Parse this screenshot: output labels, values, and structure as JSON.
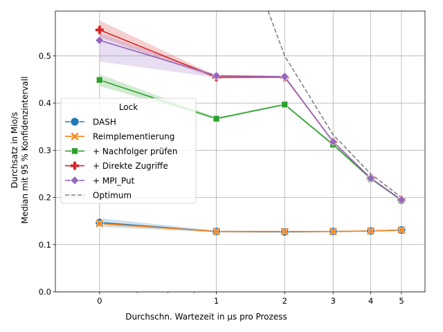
{
  "chart_data": {
    "type": "line",
    "xlabel": "Durchschn. Wartezeit in µs pro Prozess",
    "ylabel_line1": "Durchsatz in Mio/s",
    "ylabel_line2": "Median mit 95 % Konfidenzintervall",
    "x_scale": "symlog",
    "xlim": [
      -0.3,
      5.9
    ],
    "ylim": [
      0.0,
      0.595
    ],
    "x_ticks": [
      0,
      1,
      2,
      3,
      4,
      5
    ],
    "x_tick_labels": [
      "0",
      "1",
      "2",
      "3",
      "4",
      "5"
    ],
    "y_ticks": [
      0.0,
      0.1,
      0.2,
      0.3,
      0.4,
      0.5
    ],
    "y_tick_labels": [
      "0.0",
      "0.1",
      "0.2",
      "0.3",
      "0.4",
      "0.5"
    ],
    "grid": true,
    "legend": {
      "title": "Lock",
      "placement": "center-left"
    },
    "x": [
      0,
      1,
      2,
      3,
      4,
      5
    ],
    "series": [
      {
        "name": "DASH",
        "color": "#1f77b4",
        "marker": "circle",
        "values": [
          0.147,
          0.128,
          0.127,
          0.128,
          0.129,
          0.131
        ],
        "ci_low": [
          0.138,
          0.126,
          0.126,
          0.127,
          0.128,
          0.129
        ],
        "ci_high": [
          0.156,
          0.13,
          0.129,
          0.129,
          0.13,
          0.132
        ]
      },
      {
        "name": "Reimplementierung",
        "color": "#ff7f0e",
        "marker": "x-filled",
        "values": [
          0.145,
          0.128,
          0.128,
          0.128,
          0.129,
          0.131
        ],
        "ci_low": [
          0.142,
          0.127,
          0.127,
          0.127,
          0.128,
          0.13
        ],
        "ci_high": [
          0.148,
          0.129,
          0.129,
          0.129,
          0.13,
          0.132
        ]
      },
      {
        "name": "+ Nachfolger prüfen",
        "color": "#2ca02c",
        "marker": "square",
        "values": [
          0.449,
          0.367,
          0.397,
          0.312,
          0.24,
          0.194
        ],
        "ci_low": [
          0.436,
          0.365,
          0.395,
          0.309,
          0.238,
          0.193
        ],
        "ci_high": [
          0.461,
          0.37,
          0.399,
          0.315,
          0.242,
          0.196
        ]
      },
      {
        "name": "+ Direkte Zugriffe",
        "color": "#d62728",
        "marker": "plus",
        "values": [
          0.555,
          0.455,
          0.455,
          0.318,
          0.241,
          0.195
        ],
        "ci_low": [
          0.54,
          0.452,
          0.453,
          0.316,
          0.24,
          0.194
        ],
        "ci_high": [
          0.575,
          0.458,
          0.457,
          0.32,
          0.242,
          0.196
        ]
      },
      {
        "name": "+ MPI_Put",
        "color": "#9467bd",
        "marker": "diamond",
        "values": [
          0.533,
          0.458,
          0.456,
          0.318,
          0.241,
          0.195
        ],
        "ci_low": [
          0.488,
          0.454,
          0.454,
          0.316,
          0.24,
          0.194
        ],
        "ci_high": [
          0.548,
          0.46,
          0.458,
          0.32,
          0.242,
          0.196
        ]
      },
      {
        "name": "Optimum",
        "color": "#7f7f7f",
        "marker": "none",
        "dashed": true,
        "optimum_curve": [
          [
            1.72,
            0.595
          ],
          [
            2.0,
            0.5
          ],
          [
            3.0,
            0.333
          ],
          [
            4.0,
            0.25
          ],
          [
            5.0,
            0.2
          ]
        ]
      }
    ]
  }
}
